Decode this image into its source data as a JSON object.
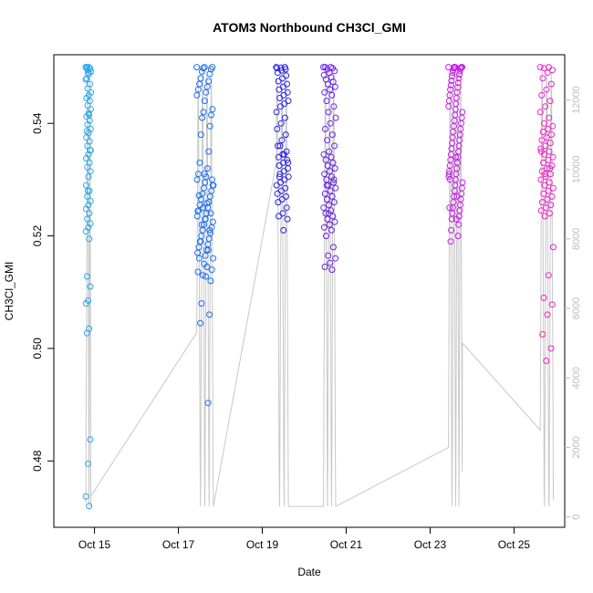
{
  "chart_data": {
    "type": "scatter",
    "title": "ATOM3 Northbound CH3Cl_GMI",
    "xlabel": "Date",
    "ylabel": "CH3Cl_GMI",
    "xlim": [
      "2016-10-14T00:45",
      "2016-10-26T05:00"
    ],
    "ylim": [
      0.4682,
      0.5522
    ],
    "y2lim": [
      -300,
      13300
    ],
    "x_ticks": [
      {
        "t": "2016-10-15",
        "label": "Oct 15"
      },
      {
        "t": "2016-10-17",
        "label": "Oct 17"
      },
      {
        "t": "2016-10-19",
        "label": "Oct 19"
      },
      {
        "t": "2016-10-21",
        "label": "Oct 21"
      },
      {
        "t": "2016-10-23",
        "label": "Oct 23"
      },
      {
        "t": "2016-10-25",
        "label": "Oct 25"
      }
    ],
    "y_ticks": [
      {
        "v": 0.48,
        "label": "0.48"
      },
      {
        "v": 0.5,
        "label": "0.50"
      },
      {
        "v": 0.52,
        "label": "0.52"
      },
      {
        "v": 0.54,
        "label": "0.54"
      }
    ],
    "y2_ticks": [
      {
        "v": 0,
        "label": "0"
      },
      {
        "v": 2000,
        "label": "2000"
      },
      {
        "v": 4000,
        "label": "4000"
      },
      {
        "v": 6000,
        "label": "6000"
      },
      {
        "v": 8000,
        "label": "8000"
      },
      {
        "v": 10000,
        "label": "10000"
      },
      {
        "v": 12000,
        "label": "12000"
      }
    ],
    "grid": false,
    "legend": "none",
    "colors": {
      "point_gradient": [
        "#29a8e8",
        "#1a6ff0",
        "#2a22e6",
        "#6a22e6",
        "#c41ee6",
        "#ef22c8"
      ],
      "altitude_line": "#c8c8c8"
    },
    "flights": [
      {
        "start": "2016-10-14T19:00",
        "end": "2016-10-14T22:00",
        "color": "#29a8e8",
        "y": [
          0.55,
          0.55,
          0.5498,
          0.5497,
          0.5495,
          0.5492,
          0.5488,
          0.548,
          0.547,
          0.5462,
          0.5455,
          0.545,
          0.5445,
          0.544,
          0.5432,
          0.5425,
          0.5418,
          0.5412,
          0.5405,
          0.5398,
          0.539,
          0.5383,
          0.5375,
          0.5368,
          0.536,
          0.5352,
          0.5345,
          0.5338,
          0.533,
          0.5322,
          0.5315,
          0.5305,
          0.529,
          0.528,
          0.527,
          0.5262,
          0.5255,
          0.5248,
          0.524,
          0.523,
          0.5222,
          0.5215,
          0.5208,
          0.5195,
          0.5128,
          0.511,
          0.5085,
          0.508,
          0.5035,
          0.5027,
          0.4838,
          0.4795,
          0.4737,
          0.472,
          0.55,
          0.5497,
          0.549,
          0.5478,
          0.5415,
          0.5386,
          0.5352,
          0.528
        ],
        "alt": [
          400,
          900,
          1500,
          2100,
          2800,
          3500,
          4200,
          4900,
          5600,
          6300,
          7000,
          7700,
          8400,
          9100,
          9800,
          10400,
          11000,
          11600,
          12200,
          12700,
          12900,
          12300,
          11400,
          10300,
          9100,
          7900,
          6700,
          5500,
          4300,
          3100,
          1900,
          800,
          300,
          1200,
          2600,
          4100,
          5600,
          7200,
          8800,
          10300,
          11700,
          12700,
          12400,
          11000,
          9400,
          7700,
          6000,
          4300,
          2600,
          1000,
          300,
          600
        ]
      },
      {
        "start": "2016-10-17T10:30",
        "end": "2016-10-17T20:00",
        "color": "#1a6ff0",
        "y": [
          0.55,
          0.55,
          0.55,
          0.5498,
          0.5496,
          0.5492,
          0.5488,
          0.548,
          0.5475,
          0.547,
          0.5465,
          0.546,
          0.5455,
          0.545,
          0.544,
          0.5425,
          0.542,
          0.5415,
          0.541,
          0.5395,
          0.538,
          0.535,
          0.533,
          0.532,
          0.531,
          0.5305,
          0.53,
          0.5295,
          0.529,
          0.5285,
          0.528,
          0.5275,
          0.527,
          0.5265,
          0.526,
          0.5255,
          0.525,
          0.5245,
          0.524,
          0.5235,
          0.523,
          0.5225,
          0.522,
          0.5215,
          0.521,
          0.5205,
          0.52,
          0.5195,
          0.519,
          0.5185,
          0.518,
          0.5175,
          0.517,
          0.5165,
          0.516,
          0.515,
          0.514,
          0.513,
          0.512,
          0.508,
          0.506,
          0.5045,
          0.4903,
          0.5272,
          0.5258,
          0.5244,
          0.523,
          0.529,
          0.531,
          0.53,
          0.525,
          0.524,
          0.522,
          0.521,
          0.519,
          0.5175,
          0.516,
          0.5145,
          0.5136,
          0.5128
        ],
        "alt": [
          5300,
          6900,
          8500,
          10100,
          11600,
          12700,
          12300,
          10800,
          9100,
          7300,
          5500,
          3700,
          1900,
          300,
          1400,
          3200,
          5000,
          6800,
          8600,
          10400,
          12000,
          12900,
          12100,
          10500,
          8700,
          6800,
          4900,
          3000,
          1100,
          300,
          2000,
          3900,
          5800,
          7700,
          9600,
          11300,
          12700,
          12500,
          10900,
          9200,
          7400,
          5600,
          3700,
          1800,
          300,
          1500,
          3400,
          5400,
          7400,
          9400,
          11200,
          12600,
          12700,
          11200,
          9400,
          7500,
          5600,
          3600,
          1600,
          300
        ]
      },
      {
        "start": "2016-10-19T08:00",
        "end": "2016-10-19T15:00",
        "color": "#2a22e6",
        "y": [
          0.55,
          0.55,
          0.5499,
          0.5498,
          0.5496,
          0.5494,
          0.549,
          0.5485,
          0.548,
          0.5475,
          0.547,
          0.5465,
          0.546,
          0.5455,
          0.545,
          0.5445,
          0.544,
          0.5435,
          0.543,
          0.542,
          0.541,
          0.54,
          0.539,
          0.538,
          0.537,
          0.536,
          0.535,
          0.5345,
          0.534,
          0.5335,
          0.533,
          0.5325,
          0.532,
          0.5315,
          0.531,
          0.5305,
          0.53,
          0.5295,
          0.529,
          0.5285,
          0.528,
          0.5275,
          0.527,
          0.5265,
          0.526,
          0.525,
          0.524,
          0.5235,
          0.523,
          0.521,
          0.5305,
          0.533,
          0.5345,
          0.536
        ],
        "alt": [
          10200,
          11500,
          12600,
          12300,
          10800,
          9000,
          7100,
          5100,
          3100,
          1100,
          300,
          2200,
          4300,
          6400,
          8500,
          10500,
          12200,
          12800,
          11600,
          9700,
          7600,
          5400,
          3200,
          1000,
          300,
          2400,
          4700,
          7000,
          9200,
          11300,
          12800,
          12300,
          10400,
          8200,
          6000,
          3700,
          1400,
          300
        ]
      },
      {
        "start": "2016-10-20T11:00",
        "end": "2016-10-20T18:00",
        "color": "#6a22e6",
        "y": [
          0.55,
          0.55,
          0.55,
          0.5498,
          0.5496,
          0.5493,
          0.549,
          0.5486,
          0.5482,
          0.5478,
          0.5474,
          0.547,
          0.5465,
          0.546,
          0.5455,
          0.545,
          0.544,
          0.543,
          0.542,
          0.541,
          0.54,
          0.539,
          0.538,
          0.537,
          0.536,
          0.535,
          0.5345,
          0.534,
          0.5335,
          0.533,
          0.5325,
          0.532,
          0.5315,
          0.531,
          0.5305,
          0.53,
          0.5295,
          0.529,
          0.5285,
          0.528,
          0.5275,
          0.527,
          0.5265,
          0.526,
          0.5255,
          0.525,
          0.5245,
          0.524,
          0.5235,
          0.523,
          0.5225,
          0.522,
          0.5215,
          0.521,
          0.52,
          0.518,
          0.5165,
          0.516,
          0.5152,
          0.5145,
          0.514,
          0.529,
          0.53,
          0.524
        ],
        "alt": [
          300,
          2400,
          4800,
          7200,
          9500,
          11600,
          12800,
          12200,
          10300,
          8100,
          5800,
          3500,
          1200,
          300,
          2600,
          5000,
          7400,
          9700,
          11700,
          12800,
          12000,
          10000,
          7700,
          5400,
          3100,
          800,
          300,
          2800,
          5200,
          7500,
          9700,
          11600,
          12700,
          12500,
          10600,
          8500,
          6300,
          4000,
          1700,
          300
        ]
      },
      {
        "start": "2016-10-23T10:30",
        "end": "2016-10-23T18:30",
        "color": "#c41ee6",
        "y": [
          0.55,
          0.55,
          0.55,
          0.55,
          0.55,
          0.55,
          0.5499,
          0.5498,
          0.5497,
          0.5495,
          0.5493,
          0.549,
          0.5487,
          0.5484,
          0.548,
          0.5476,
          0.5472,
          0.5468,
          0.5464,
          0.546,
          0.5455,
          0.545,
          0.5445,
          0.544,
          0.5435,
          0.543,
          0.5425,
          0.542,
          0.5415,
          0.541,
          0.5405,
          0.54,
          0.5395,
          0.539,
          0.5385,
          0.538,
          0.5375,
          0.537,
          0.5365,
          0.536,
          0.5355,
          0.535,
          0.5345,
          0.534,
          0.5335,
          0.533,
          0.5325,
          0.532,
          0.5315,
          0.531,
          0.5305,
          0.53,
          0.5295,
          0.529,
          0.5285,
          0.528,
          0.5275,
          0.527,
          0.5265,
          0.526,
          0.5255,
          0.525,
          0.5245,
          0.524,
          0.5235,
          0.523,
          0.522,
          0.521,
          0.52,
          0.519,
          0.533,
          0.53,
          0.527,
          0.525,
          0.523,
          0.531,
          0.534
        ],
        "alt": [
          2000,
          3800,
          5700,
          7700,
          9600,
          11400,
          12700,
          12400,
          10700,
          8800,
          6800,
          4800,
          2700,
          700,
          300,
          2100,
          4200,
          6300,
          8400,
          10300,
          12000,
          12800,
          11400,
          9300,
          7000,
          4700,
          2400,
          300,
          1300,
          3600,
          5900,
          8200,
          10300,
          12200,
          12800,
          11000,
          8800,
          6500,
          4200,
          1900,
          300,
          2200,
          4500,
          6800,
          9000,
          11100,
          12700,
          12300,
          10300,
          8100,
          5800,
          3500,
          1300,
          5000
        ]
      },
      {
        "start": "2016-10-25T15:00",
        "end": "2016-10-25T22:30",
        "color": "#ef22c8",
        "y": [
          0.55,
          0.55,
          0.5498,
          0.5495,
          0.549,
          0.548,
          0.547,
          0.546,
          0.545,
          0.544,
          0.543,
          0.542,
          0.541,
          0.54,
          0.5395,
          0.539,
          0.5385,
          0.538,
          0.5375,
          0.537,
          0.5365,
          0.536,
          0.5355,
          0.535,
          0.5345,
          0.534,
          0.5335,
          0.533,
          0.5325,
          0.532,
          0.5315,
          0.531,
          0.5305,
          0.53,
          0.5295,
          0.529,
          0.5285,
          0.528,
          0.5275,
          0.527,
          0.5265,
          0.526,
          0.5255,
          0.525,
          0.5245,
          0.524,
          0.5235,
          0.518,
          0.513,
          0.509,
          0.5078,
          0.506,
          0.5025,
          0.5,
          0.4978,
          0.535,
          0.532,
          0.531
        ],
        "alt": [
          2500,
          4700,
          7000,
          9300,
          11400,
          12800,
          12300,
          10200,
          7900,
          5500,
          3100,
          800,
          300,
          2500,
          4900,
          7300,
          9600,
          11700,
          12800,
          12000,
          9900,
          7600,
          5200,
          2800,
          500,
          300,
          2600,
          5000,
          7400,
          9600,
          11600,
          12800,
          12100,
          10000,
          7700,
          5300,
          2900,
          500
        ]
      }
    ]
  }
}
